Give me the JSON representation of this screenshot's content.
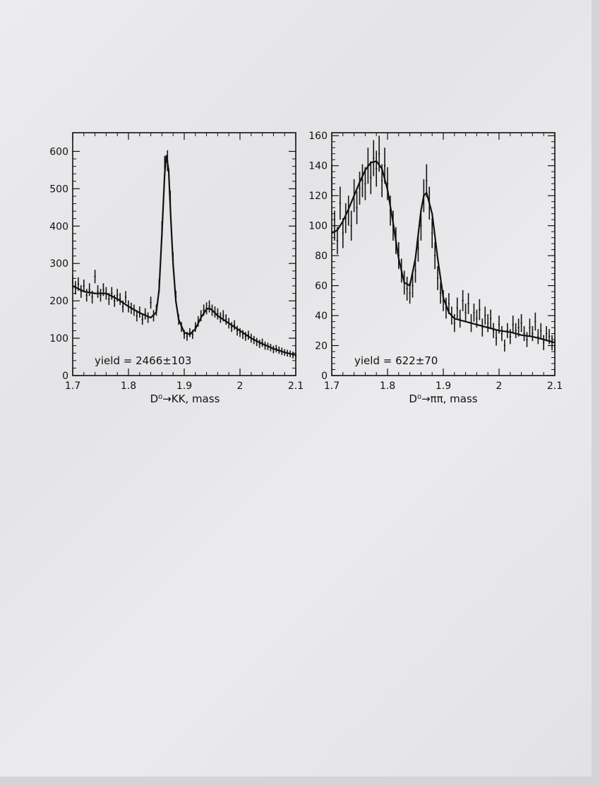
{
  "chart_data": [
    {
      "type": "scatter",
      "xlabel": "D⁰→KK, mass",
      "xlim": [
        1.7,
        2.1
      ],
      "ylim": [
        0,
        650
      ],
      "xticks": [
        "1.7",
        "1.8",
        "1.9",
        "2",
        "2.1"
      ],
      "yticks": [
        "0",
        "100",
        "200",
        "300",
        "400",
        "500",
        "600"
      ],
      "annotation": "yield = 2466±103",
      "fit_curve": {
        "x": [
          1.7,
          1.72,
          1.74,
          1.76,
          1.78,
          1.8,
          1.82,
          1.84,
          1.85,
          1.855,
          1.86,
          1.865,
          1.868,
          1.872,
          1.876,
          1.88,
          1.885,
          1.89,
          1.9,
          1.91,
          1.92,
          1.93,
          1.94,
          1.945,
          1.95,
          1.96,
          1.98,
          2.0,
          2.02,
          2.04,
          2.06,
          2.08,
          2.1
        ],
        "y": [
          240,
          225,
          220,
          220,
          205,
          185,
          168,
          155,
          170,
          230,
          380,
          540,
          590,
          550,
          420,
          300,
          200,
          150,
          115,
          110,
          125,
          155,
          178,
          180,
          175,
          160,
          140,
          120,
          100,
          85,
          72,
          62,
          55
        ]
      },
      "points": {
        "x": [
          1.7,
          1.705,
          1.71,
          1.715,
          1.72,
          1.725,
          1.73,
          1.735,
          1.74,
          1.745,
          1.75,
          1.755,
          1.76,
          1.765,
          1.77,
          1.775,
          1.78,
          1.785,
          1.79,
          1.795,
          1.8,
          1.805,
          1.81,
          1.815,
          1.82,
          1.825,
          1.83,
          1.835,
          1.84,
          1.845,
          1.85,
          1.855,
          1.86,
          1.865,
          1.87,
          1.875,
          1.88,
          1.885,
          1.89,
          1.895,
          1.9,
          1.905,
          1.91,
          1.915,
          1.92,
          1.925,
          1.93,
          1.935,
          1.94,
          1.945,
          1.95,
          1.955,
          1.96,
          1.965,
          1.97,
          1.975,
          1.98,
          1.985,
          1.99,
          1.995,
          2.0,
          2.005,
          2.01,
          2.015,
          2.02,
          2.025,
          2.03,
          2.035,
          2.04,
          2.045,
          2.05,
          2.055,
          2.06,
          2.065,
          2.07,
          2.075,
          2.08,
          2.085,
          2.09,
          2.095,
          2.1
        ],
        "y": [
          250,
          235,
          245,
          225,
          240,
          215,
          230,
          210,
          265,
          225,
          215,
          230,
          220,
          205,
          220,
          200,
          215,
          205,
          185,
          210,
          185,
          180,
          175,
          160,
          170,
          150,
          165,
          155,
          195,
          160,
          175,
          240,
          390,
          560,
          575,
          470,
          310,
          210,
          150,
          130,
          110,
          105,
          115,
          110,
          130,
          145,
          160,
          175,
          180,
          185,
          175,
          170,
          165,
          155,
          160,
          150,
          140,
          130,
          135,
          120,
          115,
          110,
          105,
          108,
          100,
          95,
          90,
          85,
          88,
          80,
          78,
          75,
          70,
          72,
          68,
          65,
          62,
          60,
          58,
          55,
          52
        ],
        "err": [
          18,
          18,
          18,
          17,
          17,
          17,
          17,
          17,
          18,
          17,
          17,
          17,
          17,
          16,
          17,
          16,
          17,
          16,
          16,
          16,
          16,
          15,
          15,
          15,
          15,
          14,
          15,
          14,
          16,
          15,
          15,
          18,
          23,
          28,
          28,
          25,
          20,
          17,
          14,
          13,
          12,
          12,
          12,
          12,
          13,
          14,
          15,
          15,
          16,
          16,
          15,
          15,
          15,
          14,
          15,
          14,
          14,
          13,
          13,
          13,
          12,
          12,
          12,
          12,
          12,
          11,
          11,
          11,
          11,
          11,
          10,
          10,
          10,
          10,
          10,
          10,
          9,
          9,
          9,
          9,
          9
        ]
      }
    },
    {
      "type": "scatter",
      "xlabel": "D⁰→ππ, mass",
      "xlim": [
        1.7,
        2.1
      ],
      "ylim": [
        0,
        162
      ],
      "xticks": [
        "1.7",
        "1.8",
        "1.9",
        "2",
        "2.1"
      ],
      "yticks": [
        "0",
        "20",
        "40",
        "60",
        "80",
        "100",
        "120",
        "140",
        "160"
      ],
      "annotation": "yield = 622±70",
      "fit_curve": {
        "x": [
          1.7,
          1.71,
          1.72,
          1.73,
          1.74,
          1.75,
          1.76,
          1.77,
          1.78,
          1.79,
          1.8,
          1.81,
          1.82,
          1.83,
          1.84,
          1.85,
          1.86,
          1.865,
          1.87,
          1.88,
          1.89,
          1.9,
          1.91,
          1.92,
          1.94,
          1.96,
          1.98,
          2.0,
          2.02,
          2.04,
          2.06,
          2.08,
          2.1
        ],
        "y": [
          95,
          97,
          103,
          111,
          120,
          129,
          137,
          142,
          143,
          138,
          124,
          102,
          78,
          62,
          60,
          78,
          110,
          120,
          122,
          108,
          78,
          52,
          42,
          38,
          36,
          34,
          32,
          30,
          29,
          27,
          26,
          24,
          22
        ]
      },
      "points": {
        "x": [
          1.7,
          1.705,
          1.71,
          1.715,
          1.72,
          1.725,
          1.73,
          1.735,
          1.74,
          1.745,
          1.75,
          1.755,
          1.76,
          1.765,
          1.77,
          1.775,
          1.78,
          1.785,
          1.79,
          1.795,
          1.8,
          1.805,
          1.81,
          1.815,
          1.82,
          1.825,
          1.83,
          1.835,
          1.84,
          1.845,
          1.85,
          1.855,
          1.86,
          1.865,
          1.87,
          1.875,
          1.88,
          1.885,
          1.89,
          1.895,
          1.9,
          1.905,
          1.91,
          1.915,
          1.92,
          1.925,
          1.93,
          1.935,
          1.94,
          1.945,
          1.95,
          1.955,
          1.96,
          1.965,
          1.97,
          1.975,
          1.98,
          1.985,
          1.99,
          1.995,
          2.0,
          2.005,
          2.01,
          2.015,
          2.02,
          2.025,
          2.03,
          2.035,
          2.04,
          2.045,
          2.05,
          2.055,
          2.06,
          2.065,
          2.07,
          2.075,
          2.08,
          2.085,
          2.09,
          2.095,
          2.1
        ],
        "y": [
          130,
          100,
          90,
          115,
          95,
          105,
          110,
          100,
          120,
          112,
          125,
          130,
          128,
          140,
          132,
          145,
          138,
          148,
          130,
          140,
          128,
          110,
          100,
          90,
          80,
          70,
          62,
          58,
          55,
          60,
          70,
          85,
          100,
          120,
          130,
          115,
          95,
          80,
          65,
          55,
          50,
          45,
          48,
          40,
          35,
          45,
          38,
          50,
          42,
          48,
          35,
          42,
          38,
          44,
          32,
          40,
          35,
          38,
          30,
          25,
          34,
          28,
          20,
          30,
          26,
          34,
          30,
          32,
          35,
          28,
          24,
          32,
          28,
          36,
          26,
          30,
          22,
          28,
          26,
          22,
          20
        ],
        "err": [
          11,
          10,
          9,
          11,
          10,
          10,
          10,
          10,
          11,
          11,
          11,
          11,
          11,
          12,
          11,
          12,
          12,
          12,
          11,
          12,
          11,
          10,
          10,
          9,
          9,
          8,
          8,
          8,
          7,
          8,
          8,
          9,
          10,
          11,
          11,
          11,
          10,
          9,
          8,
          7,
          7,
          7,
          7,
          6,
          6,
          7,
          6,
          7,
          6,
          7,
          6,
          6,
          6,
          7,
          6,
          6,
          6,
          6,
          5,
          5,
          6,
          5,
          4,
          5,
          5,
          6,
          5,
          6,
          6,
          5,
          5,
          6,
          5,
          6,
          5,
          5,
          5,
          5,
          5,
          5,
          4
        ]
      }
    }
  ]
}
